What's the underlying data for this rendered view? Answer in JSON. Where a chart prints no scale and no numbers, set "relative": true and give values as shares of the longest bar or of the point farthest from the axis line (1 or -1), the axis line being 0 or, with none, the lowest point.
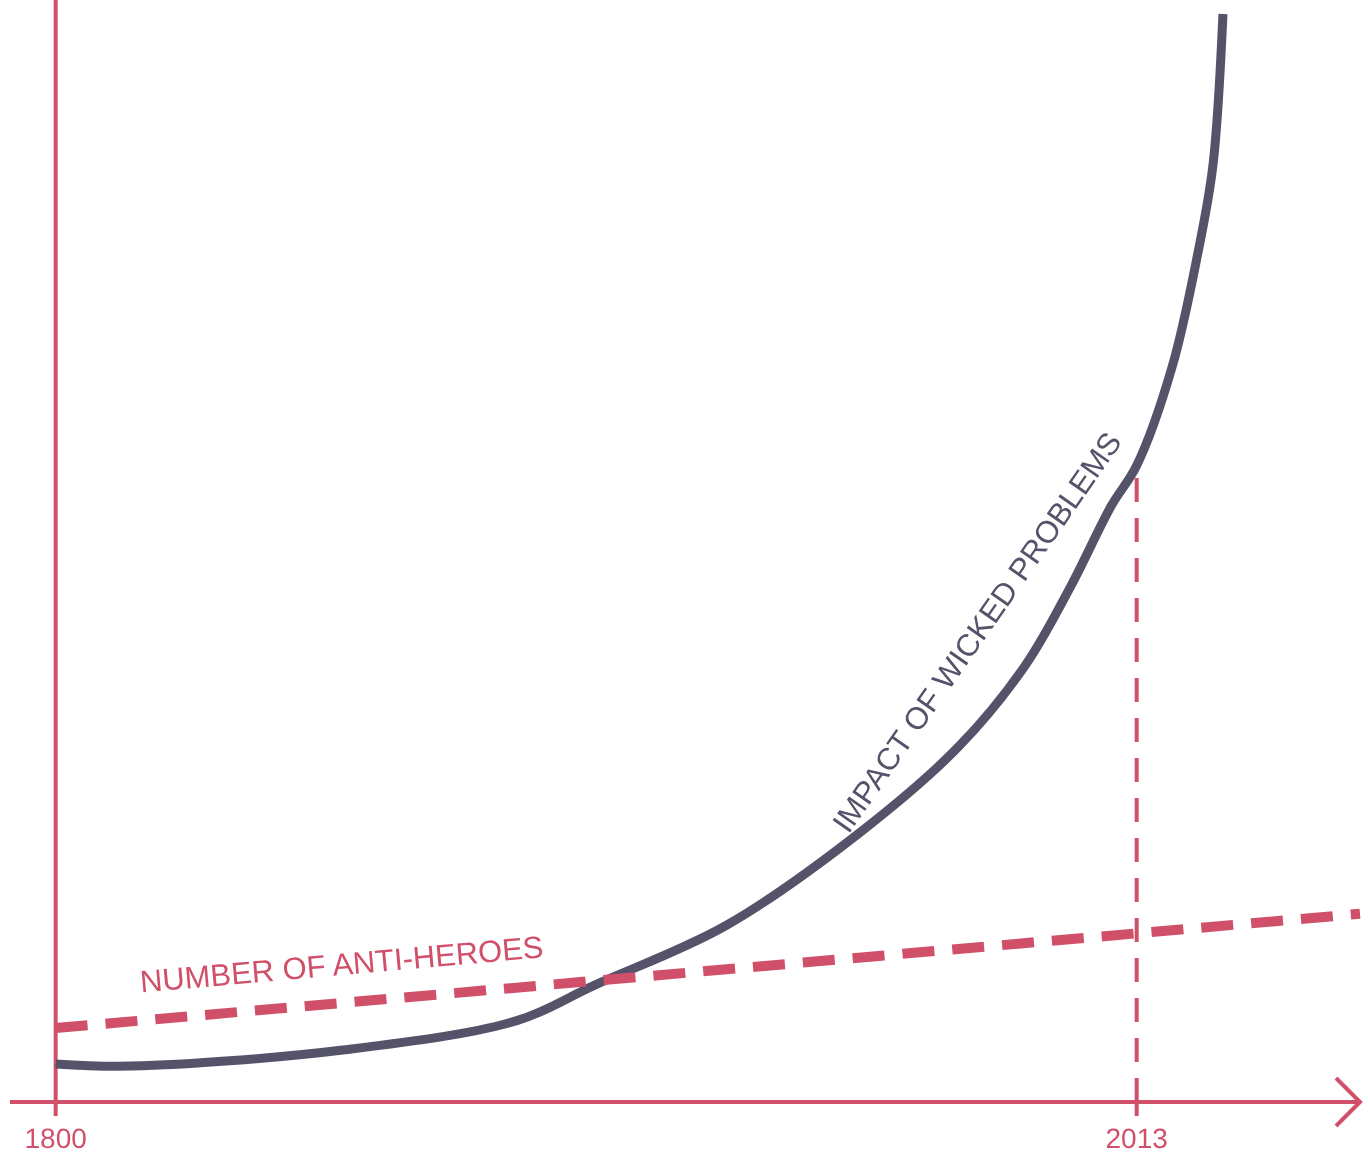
{
  "chart_data": {
    "type": "line",
    "relative": true,
    "x": [
      1800,
      1815,
      1857,
      1891,
      1906,
      1932,
      1958,
      1978,
      1991,
      2000,
      2008,
      2013,
      2020,
      2025,
      2028,
      2030
    ],
    "xlim": [
      1791,
      2057
    ],
    "xticks": [
      1800,
      2013
    ],
    "tick_labels": "x",
    "grid": false,
    "legend": false,
    "marker": "none",
    "series": [
      {
        "name": "IMPACT OF WICKED PROBLEMS",
        "color": "#55536a",
        "line_style": "solid",
        "values": [
          0.035,
          0.033,
          0.048,
          0.075,
          0.107,
          0.162,
          0.246,
          0.327,
          0.401,
          0.474,
          0.548,
          0.585,
          0.676,
          0.779,
          0.86,
          1
        ]
      },
      {
        "name": "NUMBER OF ANTI-HEROES",
        "color": "#d0506a",
        "line_style": "dashed",
        "x": [
          1800,
          2057
        ],
        "values": [
          0.068,
          0.173
        ]
      }
    ],
    "ref_lines": [
      {
        "axis": "x",
        "value": 1800,
        "color": "#d0506a",
        "line_style": "solid"
      },
      {
        "axis": "x",
        "value": 2013,
        "color": "#d0506a",
        "line_style": "dashed"
      }
    ]
  }
}
